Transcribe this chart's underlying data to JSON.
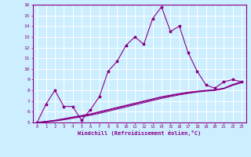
{
  "xlabel": "Windchill (Refroidissement éolien,°C)",
  "bg_color": "#cceeff",
  "grid_color": "#ffffff",
  "line_color": "#880088",
  "xlim": [
    -0.5,
    23.5
  ],
  "ylim": [
    5,
    16
  ],
  "xticks": [
    0,
    1,
    2,
    3,
    4,
    5,
    6,
    7,
    8,
    9,
    10,
    11,
    12,
    13,
    14,
    15,
    16,
    17,
    18,
    19,
    20,
    21,
    22,
    23
  ],
  "yticks": [
    5,
    6,
    7,
    8,
    9,
    10,
    11,
    12,
    13,
    14,
    15,
    16
  ],
  "line1_x": [
    0,
    1,
    2,
    3,
    4,
    5,
    6,
    7,
    8,
    9,
    10,
    11,
    12,
    13,
    14,
    15,
    16,
    17,
    18,
    19,
    20,
    21,
    22,
    23
  ],
  "line1_y": [
    5.0,
    6.7,
    8.0,
    6.5,
    6.5,
    5.2,
    6.2,
    7.4,
    9.8,
    10.7,
    12.2,
    13.0,
    12.3,
    14.7,
    15.8,
    13.5,
    14.0,
    11.5,
    9.8,
    8.5,
    8.2,
    8.8,
    9.0,
    8.8
  ],
  "line2_x": [
    0,
    1,
    2,
    3,
    4,
    5,
    6,
    7,
    8,
    9,
    10,
    11,
    12,
    13,
    14,
    15,
    16,
    17,
    18,
    19,
    20,
    21,
    22,
    23
  ],
  "line2_y": [
    5.0,
    5.1,
    5.2,
    5.35,
    5.5,
    5.65,
    5.8,
    6.0,
    6.2,
    6.4,
    6.6,
    6.8,
    7.0,
    7.2,
    7.4,
    7.55,
    7.7,
    7.82,
    7.92,
    8.0,
    8.05,
    8.2,
    8.55,
    8.8
  ],
  "line3_x": [
    0,
    1,
    2,
    3,
    4,
    5,
    6,
    7,
    8,
    9,
    10,
    11,
    12,
    13,
    14,
    15,
    16,
    17,
    18,
    19,
    20,
    21,
    22,
    23
  ],
  "line3_y": [
    5.0,
    5.08,
    5.18,
    5.3,
    5.45,
    5.6,
    5.75,
    5.95,
    6.15,
    6.35,
    6.55,
    6.75,
    6.95,
    7.15,
    7.35,
    7.5,
    7.65,
    7.78,
    7.88,
    7.96,
    8.02,
    8.18,
    8.5,
    8.75
  ],
  "line4_x": [
    0,
    1,
    2,
    3,
    4,
    5,
    6,
    7,
    8,
    9,
    10,
    11,
    12,
    13,
    14,
    15,
    16,
    17,
    18,
    19,
    20,
    21,
    22,
    23
  ],
  "line4_y": [
    5.0,
    5.05,
    5.13,
    5.25,
    5.4,
    5.53,
    5.67,
    5.85,
    6.05,
    6.25,
    6.45,
    6.65,
    6.85,
    7.05,
    7.25,
    7.42,
    7.58,
    7.72,
    7.84,
    7.93,
    8.0,
    8.15,
    8.47,
    8.72
  ]
}
